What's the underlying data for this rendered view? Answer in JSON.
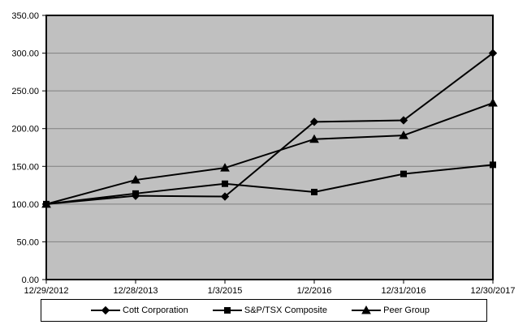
{
  "chart_data": {
    "type": "line",
    "title": "",
    "xlabel": "",
    "ylabel": "",
    "x": [
      "12/29/2012",
      "12/28/2013",
      "1/3/2015",
      "1/2/2016",
      "12/31/2016",
      "12/30/2017"
    ],
    "series": [
      {
        "name": "Cott Corporation",
        "marker": "diamond",
        "values": [
          100,
          111,
          110,
          209,
          211,
          300
        ]
      },
      {
        "name": "S&P/TSX Composite",
        "marker": "square",
        "values": [
          100,
          114,
          127,
          116,
          140,
          152
        ]
      },
      {
        "name": "Peer Group",
        "marker": "triangle",
        "values": [
          100,
          132,
          148,
          186,
          191,
          234
        ]
      }
    ],
    "ylim": [
      0,
      350
    ],
    "ytick_step": 50,
    "ytick_labels": [
      "0.00",
      "50.00",
      "100.00",
      "150.00",
      "200.00",
      "250.00",
      "300.00",
      "350.00"
    ],
    "grid": true,
    "legend_position": "bottom",
    "colors": {
      "line": "#000000",
      "marker": "#000000",
      "plot_bg": "#c0c0c0",
      "gridline": "#808080",
      "plot_border": "#000000",
      "page_bg": "#ffffff",
      "text": "#000000"
    }
  }
}
